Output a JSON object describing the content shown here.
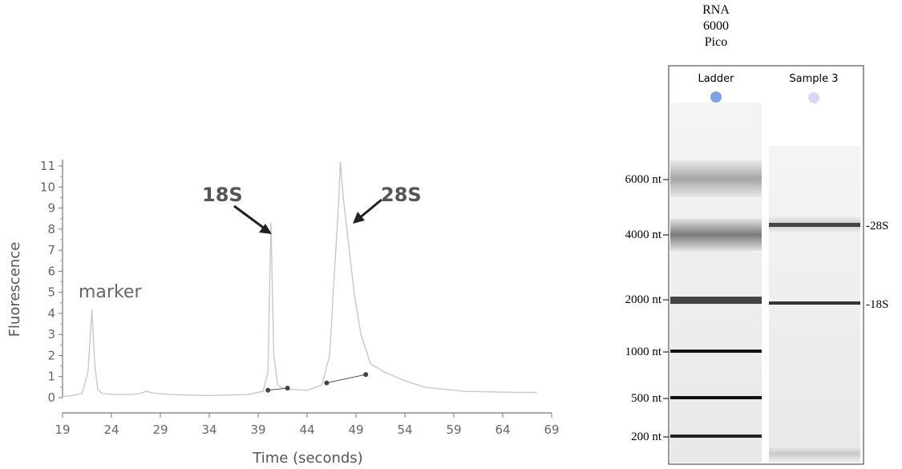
{
  "chart_data": [
    {
      "type": "line",
      "title": "",
      "xlabel": "Time (seconds)",
      "ylabel": "Fluorescence",
      "xlim": [
        19,
        69
      ],
      "ylim": [
        0,
        11
      ],
      "x_ticks": [
        19,
        24,
        29,
        34,
        39,
        44,
        49,
        54,
        59,
        64,
        69
      ],
      "y_ticks": [
        0,
        1,
        2,
        3,
        4,
        5,
        6,
        7,
        8,
        9,
        10,
        11
      ],
      "grid": false,
      "series": [
        {
          "x": [
            19.0,
            20.0,
            21.0,
            21.6,
            22.0,
            22.3,
            22.6,
            23.0,
            24.0,
            26.0,
            27.0,
            27.5,
            28.5,
            30.0,
            34.0,
            38.0,
            39.5,
            40.0,
            40.3,
            40.6,
            41.0,
            41.5,
            42.0,
            44.0,
            45.5,
            46.3,
            46.8,
            47.2,
            47.4,
            47.7,
            48.2,
            48.8,
            49.5,
            50.5,
            52.0,
            54.0,
            56.0,
            60.0,
            65.0,
            67.5
          ],
          "y": [
            0.05,
            0.1,
            0.2,
            1.2,
            4.2,
            1.5,
            0.4,
            0.2,
            0.15,
            0.15,
            0.2,
            0.3,
            0.2,
            0.15,
            0.1,
            0.15,
            0.3,
            1.2,
            8.3,
            2.0,
            0.6,
            0.45,
            0.4,
            0.35,
            0.6,
            2.0,
            6.0,
            9.0,
            11.2,
            9.5,
            7.5,
            5.0,
            3.0,
            1.6,
            1.2,
            0.8,
            0.5,
            0.3,
            0.25,
            0.25
          ]
        }
      ],
      "markers": [
        {
          "x": 40.0,
          "y": 0.35
        },
        {
          "x": 42.0,
          "y": 0.45
        },
        {
          "x": 46.0,
          "y": 0.7
        },
        {
          "x": 50.0,
          "y": 1.1
        }
      ],
      "annotations": [
        "marker",
        "18S",
        "28S"
      ]
    },
    {
      "type": "gel",
      "title": "RNA 6000 Pico",
      "lanes": [
        "Ladder",
        "Sample 3"
      ],
      "ladder_labels": [
        "6000 nt",
        "4000 nt",
        "2000 nt",
        "1000 nt",
        "500 nt",
        "200 nt"
      ],
      "sample_labels": [
        "-28S",
        "-18S"
      ],
      "lane_dot_colors": [
        "#7f9fe6",
        "#d8d8f5"
      ]
    }
  ]
}
